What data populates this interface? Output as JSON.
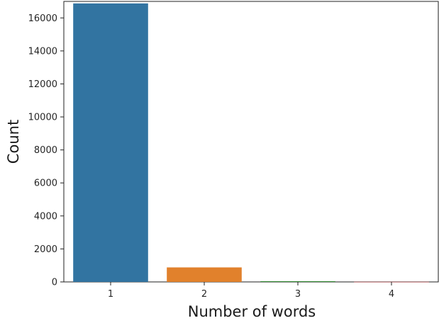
{
  "chart_data": {
    "type": "bar",
    "categories": [
      "1",
      "2",
      "3",
      "4"
    ],
    "values": [
      16880,
      880,
      45,
      8
    ],
    "colors": [
      "#3274a1",
      "#e1812c",
      "#3a923a",
      "#c03d3e"
    ],
    "xlabel": "Number of words",
    "ylabel": "Count",
    "ylim": [
      0,
      17000
    ],
    "yticks": [
      0,
      2000,
      4000,
      6000,
      8000,
      10000,
      12000,
      14000,
      16000
    ],
    "grid": false,
    "legend": "none"
  }
}
